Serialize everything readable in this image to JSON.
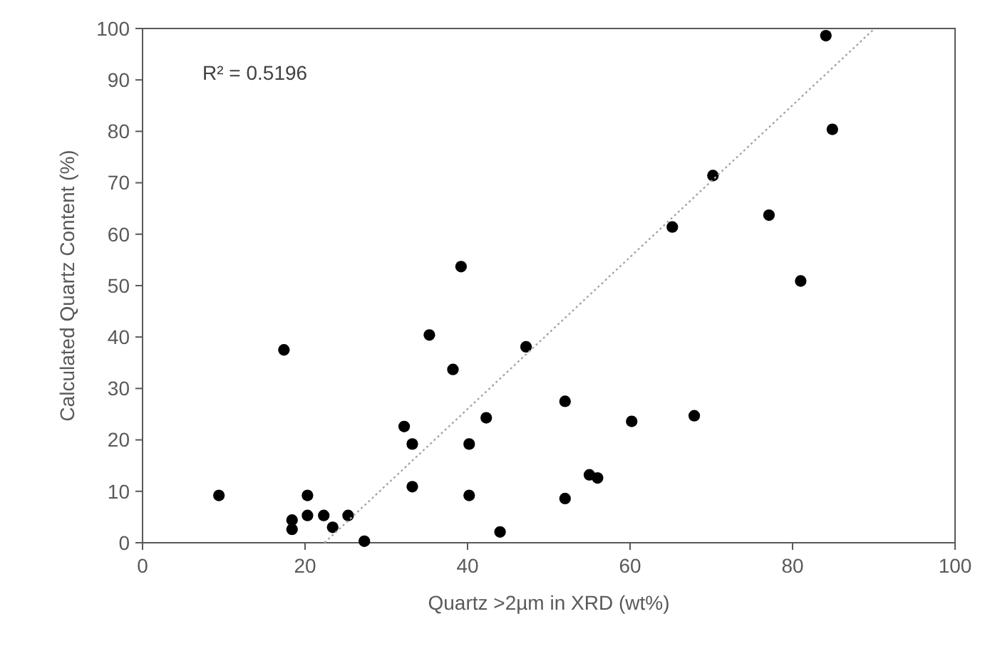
{
  "chart_data": {
    "type": "scatter",
    "xlabel": "Quartz >2µm in XRD (wt%)",
    "ylabel": "Calculated Quartz Content (%)",
    "annotations": [
      "R² = 0.5196"
    ],
    "xlim": [
      0,
      100
    ],
    "ylim": [
      0,
      100
    ],
    "xticks": [
      0,
      20,
      40,
      60,
      80,
      100
    ],
    "yticks": [
      0,
      10,
      20,
      30,
      40,
      50,
      60,
      70,
      80,
      90,
      100
    ],
    "grid": false,
    "marker": "circle",
    "series": [
      {
        "color": "#000000",
        "x": [
          9.4,
          17.4,
          18.4,
          18.4,
          20.3,
          20.3,
          22.3,
          23.4,
          25.3,
          27.3,
          32.2,
          33.2,
          33.2,
          35.3,
          38.2,
          39.2,
          40.2,
          40.2,
          42.3,
          44.0,
          47.2,
          52.0,
          52.0,
          55.0,
          56.0,
          60.2,
          67.9,
          81.0,
          65.2,
          70.2,
          77.1,
          84.1,
          84.9
        ],
        "values": [
          9.2,
          37.5,
          4.4,
          2.6,
          9.2,
          5.3,
          5.3,
          3.0,
          5.3,
          0.3,
          22.6,
          19.2,
          10.9,
          40.4,
          33.7,
          53.7,
          19.2,
          9.2,
          24.3,
          2.1,
          38.1,
          27.5,
          8.6,
          13.2,
          12.6,
          23.6,
          24.7,
          50.9,
          61.4,
          71.4,
          63.7,
          98.6,
          80.4
        ]
      },
      {
        "type": "line",
        "color": "#a6a6a6",
        "marker": "none",
        "line_style": "dotted",
        "x": [
          22.4,
          90.1
        ],
        "values": [
          0,
          100
        ]
      }
    ]
  }
}
